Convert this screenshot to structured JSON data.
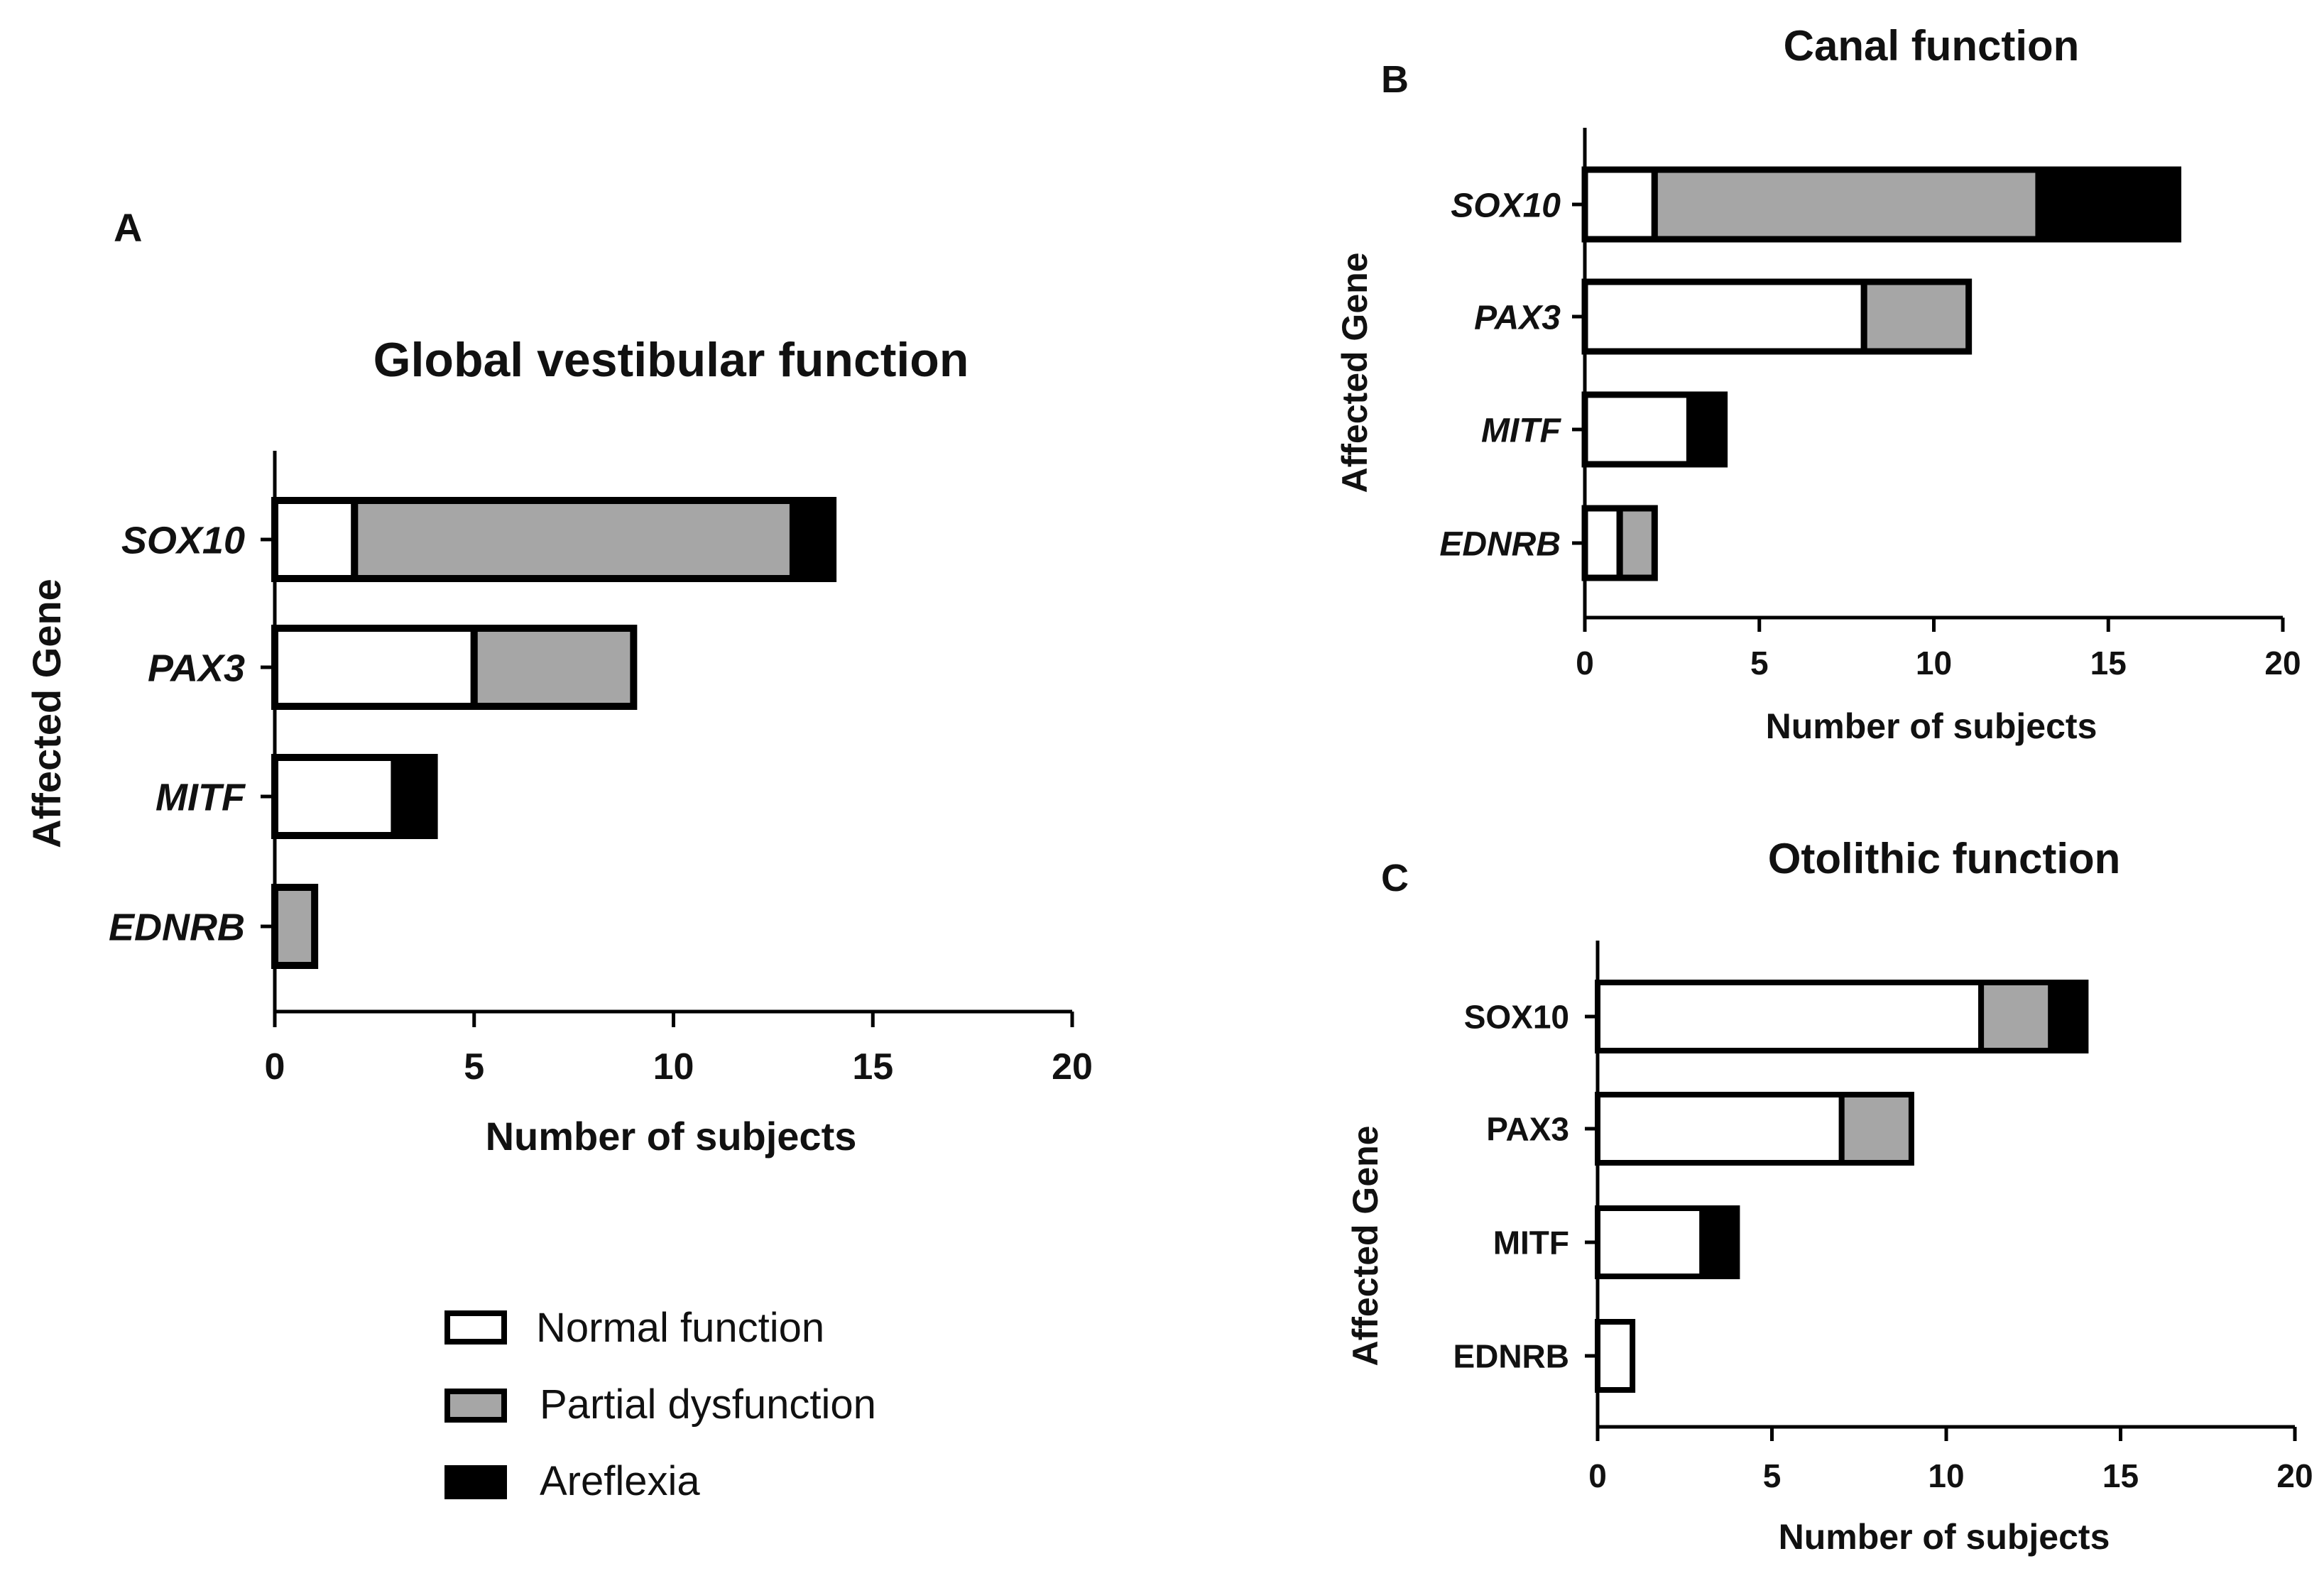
{
  "colors": {
    "normal": "#ffffff",
    "partial": "#a6a6a6",
    "areflexia": "#000000",
    "outline": "#000000"
  },
  "legend": {
    "items": [
      {
        "key": "normal",
        "label": "Normal function"
      },
      {
        "key": "partial",
        "label": "Partial dysfunction"
      },
      {
        "key": "areflexia",
        "label": "Areflexia"
      }
    ]
  },
  "chart_data": [
    {
      "panel": "A",
      "type": "bar",
      "orientation": "horizontal",
      "stacked": true,
      "title": "Global vestibular function",
      "xlabel": "Number of subjects",
      "ylabel": "Affected Gene",
      "categories": [
        "SOX10",
        "PAX3",
        "MITF",
        "EDNRB"
      ],
      "italic_categories": true,
      "xlim": [
        0,
        20
      ],
      "xticks": [
        0,
        5,
        10,
        15,
        20
      ],
      "series": [
        {
          "name": "Normal function",
          "key": "normal",
          "values": [
            2,
            5,
            3,
            0
          ]
        },
        {
          "name": "Partial dysfunction",
          "key": "partial",
          "values": [
            11,
            4,
            0,
            1
          ]
        },
        {
          "name": "Areflexia",
          "key": "areflexia",
          "values": [
            1,
            0,
            1,
            0
          ]
        }
      ]
    },
    {
      "panel": "B",
      "type": "bar",
      "orientation": "horizontal",
      "stacked": true,
      "title": "Canal function",
      "xlabel": "Number of subjects",
      "ylabel": "Affected Gene",
      "categories": [
        "SOX10",
        "PAX3",
        "MITF",
        "EDNRB"
      ],
      "italic_categories": true,
      "xlim": [
        0,
        20
      ],
      "xticks": [
        0,
        5,
        10,
        15,
        20
      ],
      "series": [
        {
          "name": "Normal function",
          "key": "normal",
          "values": [
            2,
            8,
            3,
            1
          ]
        },
        {
          "name": "Partial dysfunction",
          "key": "partial",
          "values": [
            11,
            3,
            0,
            1
          ]
        },
        {
          "name": "Areflexia",
          "key": "areflexia",
          "values": [
            4,
            0,
            1,
            0
          ]
        }
      ]
    },
    {
      "panel": "C",
      "type": "bar",
      "orientation": "horizontal",
      "stacked": true,
      "title": "Otolithic function",
      "xlabel": "Number of subjects",
      "ylabel": "Affected Gene",
      "categories": [
        "SOX10",
        "PAX3",
        "MITF",
        "EDNRB"
      ],
      "italic_categories": false,
      "xlim": [
        0,
        20
      ],
      "xticks": [
        0,
        5,
        10,
        15,
        20
      ],
      "series": [
        {
          "name": "Normal function",
          "key": "normal",
          "values": [
            11,
            7,
            3,
            1
          ]
        },
        {
          "name": "Partial dysfunction",
          "key": "partial",
          "values": [
            2,
            2,
            0,
            0
          ]
        },
        {
          "name": "Areflexia",
          "key": "areflexia",
          "values": [
            1,
            0,
            1,
            0
          ]
        }
      ]
    }
  ]
}
